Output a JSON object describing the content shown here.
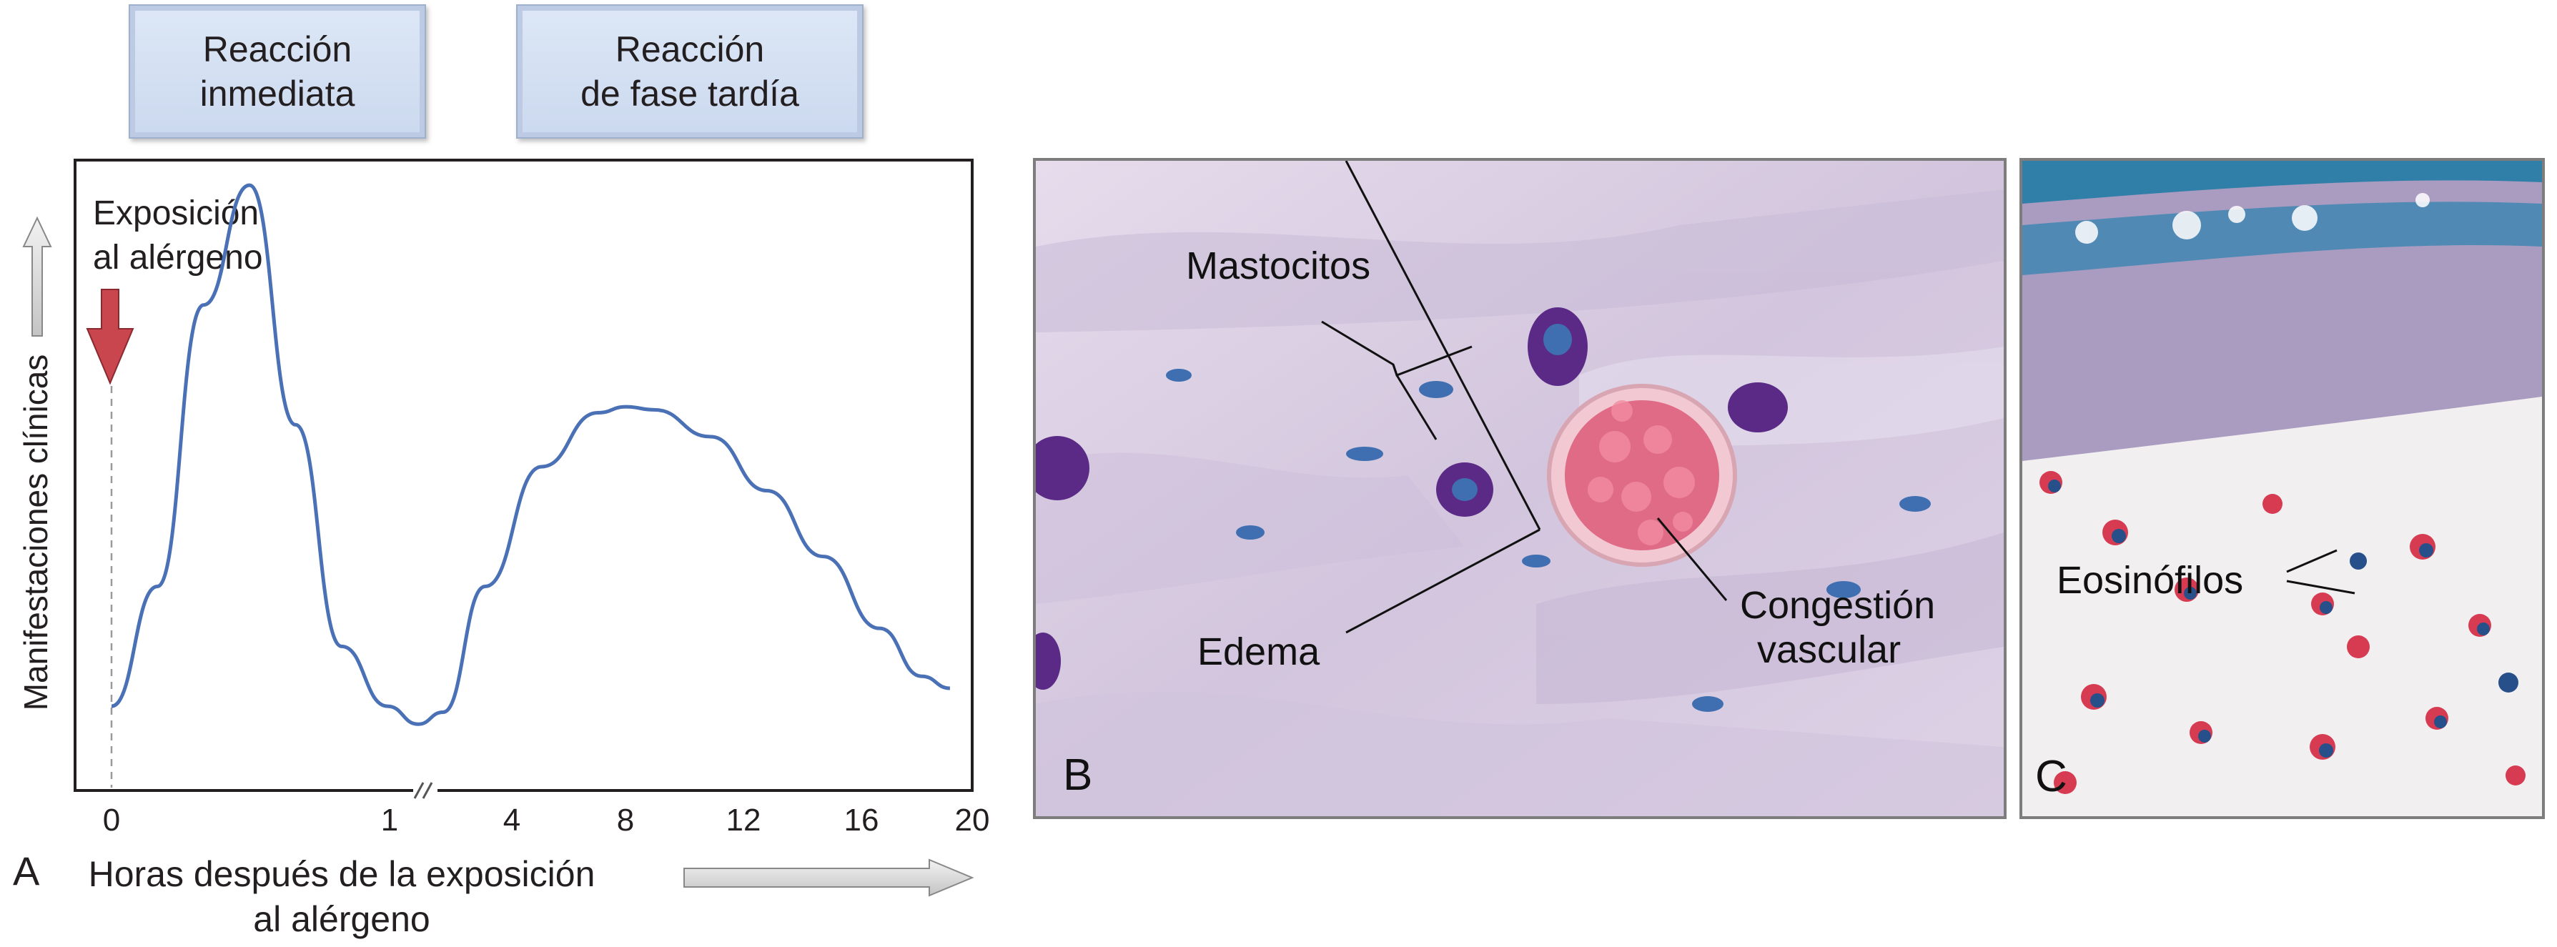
{
  "phases": {
    "immediate": "Reacción\ninmediata",
    "late": "Reacción\nde fase tardía"
  },
  "panel_a": {
    "panel_letter": "A",
    "exposure_label_1": "Exposición",
    "exposure_label_2": "al alérgeno",
    "y_axis_label": "Manifestaciones clínicas",
    "x_axis_label_1": "Horas después de la exposición",
    "x_axis_label_2": "al alérgeno",
    "colors": {
      "curve": "#4a70b5",
      "exposure_arrow": "#c9464f",
      "axis_arrow": "#cfcfcf"
    }
  },
  "chart_data": {
    "type": "line",
    "x_tick_labels": [
      "0",
      "1",
      "4",
      "8",
      "12",
      "16",
      "20"
    ],
    "x_axis_break_after": "1",
    "series": [
      {
        "x": [
          0,
          0.15,
          0.3,
          0.45,
          0.6,
          0.75,
          0.9,
          1,
          1.5,
          3,
          5,
          7,
          8,
          9,
          11,
          13,
          15,
          17,
          18.5,
          19.5
        ],
        "y": [
          5,
          25,
          72,
          92,
          52,
          15,
          5,
          2,
          4,
          25,
          45,
          54,
          55,
          54.5,
          50,
          41,
          30,
          18,
          10,
          8
        ]
      }
    ],
    "y_scale": "relative (no numeric axis)"
  },
  "panel_b": {
    "panel_letter": "B",
    "labels": {
      "mast_cells": "Mastocitos",
      "edema": "Edema",
      "congestion_1": "Congestión",
      "congestion_2": "vascular"
    }
  },
  "panel_c": {
    "panel_letter": "C",
    "labels": {
      "eosinophils": "Eosinófilos"
    }
  }
}
